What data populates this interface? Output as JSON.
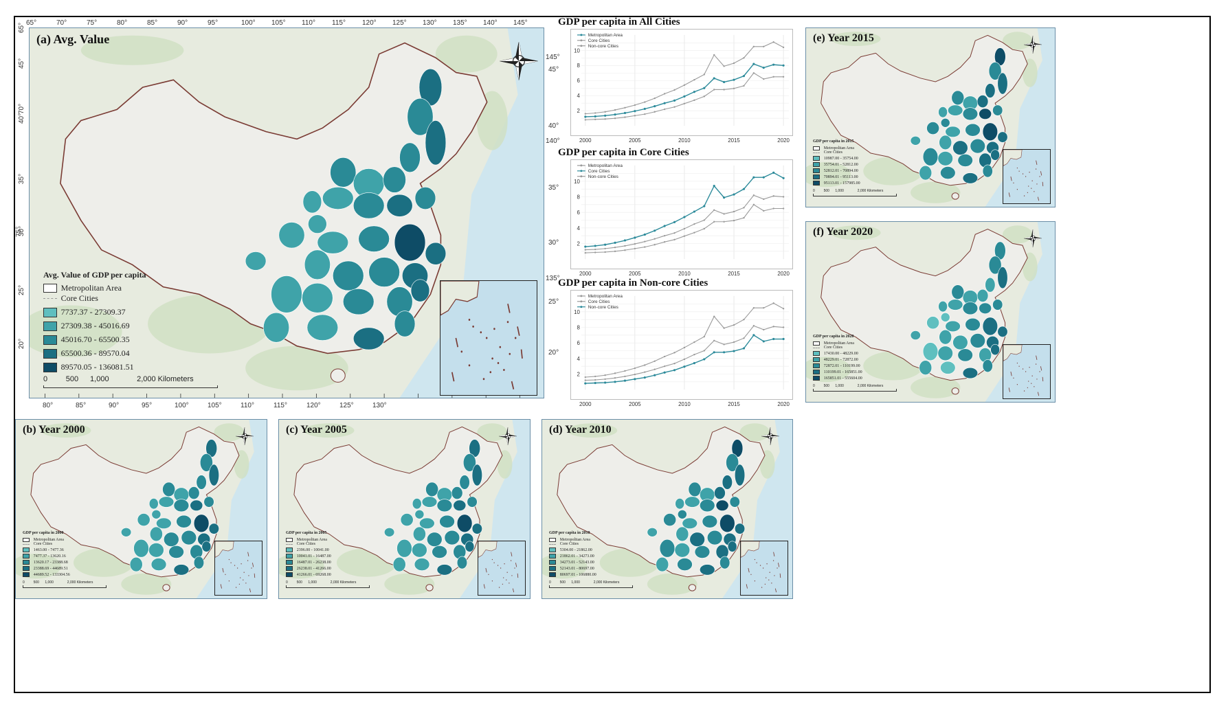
{
  "panels": {
    "a": {
      "title": "(a) Avg. Value",
      "legend_title": "Avg. Value of GDP per capita",
      "legend_area": "Metropolitan Area",
      "legend_core": "Core Cities",
      "classes": [
        "7737.37 - 27309.37",
        "27309.38 - 45016.69",
        "45016.70 - 65500.35",
        "65500.36 - 89570.04",
        "89570.05 - 136081.51"
      ],
      "scale": [
        "0",
        "500",
        "1,000",
        "2,000 Kilometers"
      ],
      "lon_top": [
        "65°",
        "70°",
        "75°",
        "80°",
        "85°",
        "90°",
        "95°",
        "100°",
        "105°",
        "110°",
        "115°",
        "120°",
        "125°",
        "130°",
        "135°",
        "140°",
        "145°"
      ],
      "lon_bottom": [
        "80°",
        "85°",
        "90°",
        "95°",
        "100°",
        "105°",
        "110°",
        "115°",
        "120°",
        "125°",
        "130°"
      ],
      "lat_left": [
        "65°",
        "45°",
        "70°",
        "40°",
        "35°",
        "30°",
        "75°",
        "25°",
        "20°"
      ],
      "lat_right": [
        "145°",
        "45°",
        "40°",
        "140°",
        "35°",
        "30°",
        "135°",
        "25°",
        "20°"
      ]
    },
    "b": {
      "title": "(b) Year 2000",
      "legend_title": "GDP per capita in 2000",
      "legend_area": "Metropolitan Area",
      "legend_core": "Core Cities",
      "classes": [
        "1463.00 - 7477.36",
        "7477.37 - 13620.16",
        "13620.17 - 23388.68",
        "23388.69 - 44689.51",
        "44689.52 - 133304.56"
      ],
      "scale": [
        "0",
        "500",
        "1,000",
        "2,000 Kilometers"
      ]
    },
    "c": {
      "title": "(c) Year 2005",
      "legend_title": "GDP per capita in 2005",
      "legend_area": "Metropolitan Area",
      "legend_core": "Core Cities",
      "classes": [
        "2396.00 - 10041.00",
        "10041.01 - 16487.00",
        "16487.01 - 26238.00",
        "26238.01 - 41266.00",
        "41266.01 - 69268.00"
      ],
      "scale": [
        "0",
        "500",
        "1,000",
        "2,000 Kilometers"
      ]
    },
    "d": {
      "title": "(d) Year 2010",
      "legend_title": "GDP per capita in 2010",
      "legend_area": "Metropolitan Area",
      "legend_core": "Core Cities",
      "classes": [
        "5304.00 - 21862.00",
        "21862.01 - 34273.00",
        "34273.01 - 52143.00",
        "52143.01 - 80697.00",
        "80697.01 - 106880.00"
      ],
      "scale": [
        "0",
        "500",
        "1,000",
        "2,000 Kilometers"
      ]
    },
    "e": {
      "title": "(e) Year 2015",
      "legend_title": "GDP per capita in 2015",
      "legend_area": "Metropolitan Area",
      "legend_core": "Core Cities",
      "classes": [
        "10987.00 - 35754.00",
        "35754.01 - 52812.00",
        "52812.01 - 70894.00",
        "70894.01 - 95113.00",
        "95113.01 - 157985.00"
      ],
      "scale": [
        "0",
        "500",
        "1,000",
        "2,000 Kilometers"
      ]
    },
    "f": {
      "title": "(f) Year 2020",
      "legend_title": "GDP per capita in 2020",
      "legend_area": "Metropolitan Area",
      "legend_core": "Core Cities",
      "classes": [
        "17430.00 - 48229.00",
        "48229.01 - 72872.00",
        "72872.01 - 110199.00",
        "110199.01 - 165851.00",
        "165851.01 - 555604.00"
      ],
      "scale": [
        "0",
        "500",
        "1,000",
        "2,000 Kilometers"
      ]
    }
  },
  "colors": {
    "classes": [
      "#5fbfbf",
      "#3fa3a9",
      "#2a8a96",
      "#1b6f82",
      "#0e4c66"
    ],
    "core_line": "#2b8a9a",
    "other_line": "#9a9a9a",
    "boundary": "#7a3b34",
    "ocean": "#cfe6ef",
    "land": "#eeeeea"
  },
  "chart_data": [
    {
      "type": "line",
      "title": "GDP per capita in All Cities",
      "x": [
        2000,
        2001,
        2002,
        2003,
        2004,
        2005,
        2006,
        2007,
        2008,
        2009,
        2010,
        2011,
        2012,
        2013,
        2014,
        2015,
        2016,
        2017,
        2018,
        2019,
        2020
      ],
      "xticks": [
        "2000",
        "2005",
        "2010",
        "2015",
        "2020"
      ],
      "ylim": [
        0,
        11.5
      ],
      "yticks": [
        "10",
        "8",
        "6",
        "4",
        "2"
      ],
      "highlight": "Metropolitan Area",
      "series": [
        {
          "name": "Metropolitan Area",
          "values": [
            1.2,
            1.25,
            1.35,
            1.5,
            1.7,
            1.95,
            2.25,
            2.6,
            3.0,
            3.35,
            3.9,
            4.5,
            5.0,
            6.3,
            5.8,
            6.1,
            6.6,
            8.2,
            7.7,
            8.1,
            8.0
          ]
        },
        {
          "name": "Core Cities",
          "values": [
            1.6,
            1.7,
            1.85,
            2.1,
            2.4,
            2.75,
            3.15,
            3.65,
            4.25,
            4.75,
            5.4,
            6.1,
            6.8,
            9.4,
            7.9,
            8.3,
            9.0,
            10.5,
            10.5,
            11.1,
            10.4
          ]
        },
        {
          "name": "Non-core Cities",
          "values": [
            0.8,
            0.85,
            0.9,
            1.0,
            1.15,
            1.35,
            1.55,
            1.85,
            2.2,
            2.5,
            2.95,
            3.4,
            3.9,
            4.8,
            4.8,
            4.95,
            5.3,
            7.0,
            6.2,
            6.5,
            6.5
          ]
        }
      ]
    },
    {
      "type": "line",
      "title": "GDP per capita in Core Cities",
      "x": [
        2000,
        2001,
        2002,
        2003,
        2004,
        2005,
        2006,
        2007,
        2008,
        2009,
        2010,
        2011,
        2012,
        2013,
        2014,
        2015,
        2016,
        2017,
        2018,
        2019,
        2020
      ],
      "xticks": [
        "2000",
        "2005",
        "2010",
        "2015",
        "2020"
      ],
      "ylim": [
        0,
        11.5
      ],
      "yticks": [
        "10",
        "8",
        "6",
        "4",
        "2"
      ],
      "highlight": "Core Cities",
      "series": [
        {
          "name": "Metropolitan Area",
          "values": [
            1.2,
            1.25,
            1.35,
            1.5,
            1.7,
            1.95,
            2.25,
            2.6,
            3.0,
            3.35,
            3.9,
            4.5,
            5.0,
            6.3,
            5.8,
            6.1,
            6.6,
            8.2,
            7.7,
            8.1,
            8.0
          ]
        },
        {
          "name": "Core Cities",
          "values": [
            1.6,
            1.7,
            1.85,
            2.1,
            2.4,
            2.75,
            3.15,
            3.65,
            4.25,
            4.75,
            5.4,
            6.1,
            6.8,
            9.4,
            7.9,
            8.3,
            9.0,
            10.5,
            10.5,
            11.1,
            10.4
          ]
        },
        {
          "name": "Non-core Cities",
          "values": [
            0.8,
            0.85,
            0.9,
            1.0,
            1.15,
            1.35,
            1.55,
            1.85,
            2.2,
            2.5,
            2.95,
            3.4,
            3.9,
            4.8,
            4.8,
            4.95,
            5.3,
            7.0,
            6.2,
            6.5,
            6.5
          ]
        }
      ]
    },
    {
      "type": "line",
      "title": "GDP per capita in Non-core Cities",
      "x": [
        2000,
        2001,
        2002,
        2003,
        2004,
        2005,
        2006,
        2007,
        2008,
        2009,
        2010,
        2011,
        2012,
        2013,
        2014,
        2015,
        2016,
        2017,
        2018,
        2019,
        2020
      ],
      "xticks": [
        "2000",
        "2005",
        "2010",
        "2015",
        "2020"
      ],
      "ylim": [
        0,
        11.5
      ],
      "yticks": [
        "10",
        "8",
        "6",
        "4",
        "2"
      ],
      "highlight": "Non-core Cities",
      "series": [
        {
          "name": "Metropolitan Area",
          "values": [
            1.2,
            1.25,
            1.35,
            1.5,
            1.7,
            1.95,
            2.25,
            2.6,
            3.0,
            3.35,
            3.9,
            4.5,
            5.0,
            6.3,
            5.8,
            6.1,
            6.6,
            8.2,
            7.7,
            8.1,
            8.0
          ]
        },
        {
          "name": "Core Cities",
          "values": [
            1.6,
            1.7,
            1.85,
            2.1,
            2.4,
            2.75,
            3.15,
            3.65,
            4.25,
            4.75,
            5.4,
            6.1,
            6.8,
            9.4,
            7.9,
            8.3,
            9.0,
            10.5,
            10.5,
            11.1,
            10.4
          ]
        },
        {
          "name": "Non-core Cities",
          "values": [
            0.8,
            0.85,
            0.9,
            1.0,
            1.15,
            1.35,
            1.55,
            1.85,
            2.2,
            2.5,
            2.95,
            3.4,
            3.9,
            4.8,
            4.8,
            4.95,
            5.3,
            7.0,
            6.2,
            6.5,
            6.5
          ]
        }
      ]
    }
  ]
}
